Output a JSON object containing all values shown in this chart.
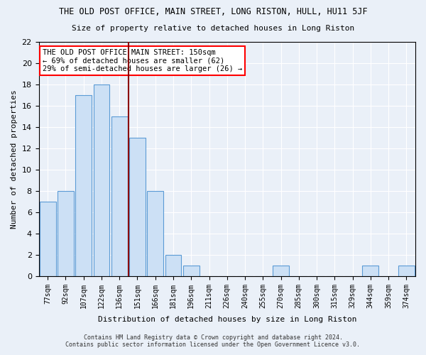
{
  "title1": "THE OLD POST OFFICE, MAIN STREET, LONG RISTON, HULL, HU11 5JF",
  "title2": "Size of property relative to detached houses in Long Riston",
  "xlabel": "Distribution of detached houses by size in Long Riston",
  "ylabel": "Number of detached properties",
  "bar_labels": [
    "77sqm",
    "92sqm",
    "107sqm",
    "122sqm",
    "136sqm",
    "151sqm",
    "166sqm",
    "181sqm",
    "196sqm",
    "211sqm",
    "226sqm",
    "240sqm",
    "255sqm",
    "270sqm",
    "285sqm",
    "300sqm",
    "315sqm",
    "329sqm",
    "344sqm",
    "359sqm",
    "374sqm"
  ],
  "bar_values": [
    7,
    8,
    17,
    18,
    15,
    13,
    8,
    2,
    1,
    0,
    0,
    0,
    0,
    1,
    0,
    0,
    0,
    0,
    1,
    0,
    1
  ],
  "bar_color": "#cce0f5",
  "bar_edge_color": "#5b9bd5",
  "vline_x_index": 5,
  "vline_color": "#8b0000",
  "annotation_text": "THE OLD POST OFFICE MAIN STREET: 150sqm\n← 69% of detached houses are smaller (62)\n29% of semi-detached houses are larger (26) →",
  "annotation_box_color": "white",
  "annotation_box_edge": "red",
  "ylim": [
    0,
    22
  ],
  "yticks": [
    0,
    2,
    4,
    6,
    8,
    10,
    12,
    14,
    16,
    18,
    20,
    22
  ],
  "footer1": "Contains HM Land Registry data © Crown copyright and database right 2024.",
  "footer2": "Contains public sector information licensed under the Open Government Licence v3.0.",
  "bg_color": "#eaf0f8",
  "plot_bg_color": "#eaf0f8"
}
